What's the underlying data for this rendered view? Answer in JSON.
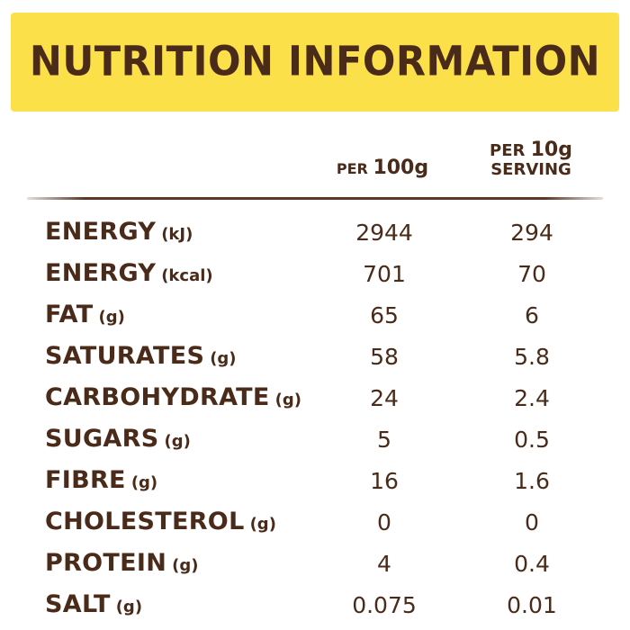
{
  "title": "NUTRITION INFORMATION",
  "columns": {
    "per_100": {
      "line1": "PER",
      "line2": "100g"
    },
    "per_10": {
      "line1": "PER 10g",
      "line2": "SERVING"
    }
  },
  "colors": {
    "banner": "#fbe04a",
    "text": "#4a2b1a"
  },
  "rows": [
    {
      "name": "ENERGY",
      "unit": "(kJ)",
      "per_100": "2944",
      "per_10": "294"
    },
    {
      "name": "ENERGY",
      "unit": "(kcal)",
      "per_100": "701",
      "per_10": "70"
    },
    {
      "name": "FAT",
      "unit": "(g)",
      "per_100": "65",
      "per_10": "6"
    },
    {
      "name": "SATURATES",
      "unit": "(g)",
      "per_100": "58",
      "per_10": "5.8"
    },
    {
      "name": "CARBOHYDRATE",
      "unit": "(g)",
      "per_100": "24",
      "per_10": "2.4"
    },
    {
      "name": "SUGARS",
      "unit": "(g)",
      "per_100": "5",
      "per_10": "0.5"
    },
    {
      "name": "FIBRE",
      "unit": "(g)",
      "per_100": "16",
      "per_10": "1.6"
    },
    {
      "name": "CHOLESTEROL",
      "unit": "(g)",
      "per_100": "0",
      "per_10": "0"
    },
    {
      "name": "PROTEIN",
      "unit": "(g)",
      "per_100": "4",
      "per_10": "0.4"
    },
    {
      "name": "SALT",
      "unit": "(g)",
      "per_100": "0.075",
      "per_10": "0.01"
    }
  ]
}
